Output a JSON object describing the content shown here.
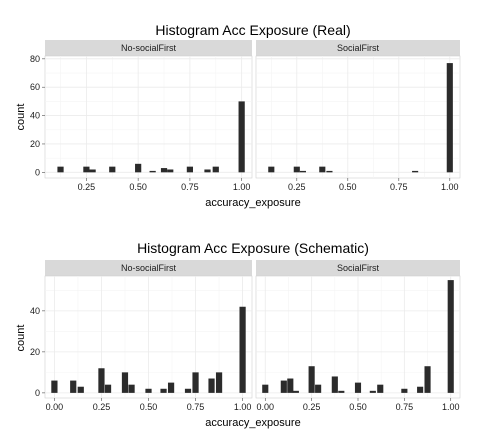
{
  "chart_data": [
    {
      "type": "bar",
      "title": "Histogram Acc Exposure (Real)",
      "xlabel": "accuracy_exposure",
      "ylabel": "count",
      "xlim": [
        0.05,
        1.05
      ],
      "ylim": [
        -4,
        82
      ],
      "x_ticks": [
        "0.25",
        "0.50",
        "0.75",
        "1.00"
      ],
      "y_ticks": [
        "0",
        "20",
        "40",
        "60",
        "80"
      ],
      "bin_width": 0.03,
      "colors": {
        "bar": "#2b2b2b",
        "panel": "#ffffff",
        "grid": "#ebebeb",
        "strip": "#d9d9d9"
      },
      "grid": true,
      "panels": [
        {
          "label": "No-socialFirst",
          "bins": [
            {
              "x": 0.125,
              "count": 4
            },
            {
              "x": 0.25,
              "count": 4
            },
            {
              "x": 0.28,
              "count": 2
            },
            {
              "x": 0.375,
              "count": 4
            },
            {
              "x": 0.5,
              "count": 6
            },
            {
              "x": 0.57,
              "count": 1
            },
            {
              "x": 0.625,
              "count": 3
            },
            {
              "x": 0.655,
              "count": 2
            },
            {
              "x": 0.75,
              "count": 4
            },
            {
              "x": 0.835,
              "count": 2
            },
            {
              "x": 0.875,
              "count": 4
            },
            {
              "x": 1.0,
              "count": 50
            }
          ]
        },
        {
          "label": "SocialFirst",
          "bins": [
            {
              "x": 0.125,
              "count": 4
            },
            {
              "x": 0.25,
              "count": 4
            },
            {
              "x": 0.28,
              "count": 1
            },
            {
              "x": 0.375,
              "count": 4
            },
            {
              "x": 0.41,
              "count": 1
            },
            {
              "x": 0.83,
              "count": 1
            },
            {
              "x": 1.0,
              "count": 77
            }
          ]
        }
      ]
    },
    {
      "type": "bar",
      "title": "Histogram Acc Exposure (Schematic)",
      "xlabel": "accuracy_exposure",
      "ylabel": "count",
      "xlim": [
        -0.05,
        1.05
      ],
      "ylim": [
        -2.5,
        57
      ],
      "x_ticks": [
        "0.00",
        "0.25",
        "0.50",
        "0.75",
        "1.00"
      ],
      "y_ticks": [
        "0",
        "20",
        "40"
      ],
      "bin_width": 0.033,
      "colors": {
        "bar": "#2b2b2b",
        "panel": "#ffffff",
        "grid": "#ebebeb",
        "strip": "#d9d9d9"
      },
      "grid": true,
      "panels": [
        {
          "label": "No-socialFirst",
          "bins": [
            {
              "x": 0.0,
              "count": 6
            },
            {
              "x": 0.1,
              "count": 6
            },
            {
              "x": 0.14,
              "count": 3
            },
            {
              "x": 0.25,
              "count": 12
            },
            {
              "x": 0.285,
              "count": 4
            },
            {
              "x": 0.375,
              "count": 10
            },
            {
              "x": 0.41,
              "count": 4
            },
            {
              "x": 0.5,
              "count": 2
            },
            {
              "x": 0.58,
              "count": 2
            },
            {
              "x": 0.62,
              "count": 5
            },
            {
              "x": 0.71,
              "count": 2
            },
            {
              "x": 0.75,
              "count": 10
            },
            {
              "x": 0.835,
              "count": 7
            },
            {
              "x": 0.875,
              "count": 10
            },
            {
              "x": 1.0,
              "count": 42
            }
          ]
        },
        {
          "label": "SocialFirst",
          "bins": [
            {
              "x": 0.0,
              "count": 4
            },
            {
              "x": 0.1,
              "count": 6
            },
            {
              "x": 0.135,
              "count": 7
            },
            {
              "x": 0.165,
              "count": 1
            },
            {
              "x": 0.25,
              "count": 13
            },
            {
              "x": 0.285,
              "count": 4
            },
            {
              "x": 0.375,
              "count": 8
            },
            {
              "x": 0.41,
              "count": 1
            },
            {
              "x": 0.5,
              "count": 5
            },
            {
              "x": 0.58,
              "count": 1
            },
            {
              "x": 0.62,
              "count": 4
            },
            {
              "x": 0.75,
              "count": 2
            },
            {
              "x": 0.835,
              "count": 3
            },
            {
              "x": 0.875,
              "count": 13
            },
            {
              "x": 1.0,
              "count": 55
            }
          ]
        }
      ]
    }
  ]
}
